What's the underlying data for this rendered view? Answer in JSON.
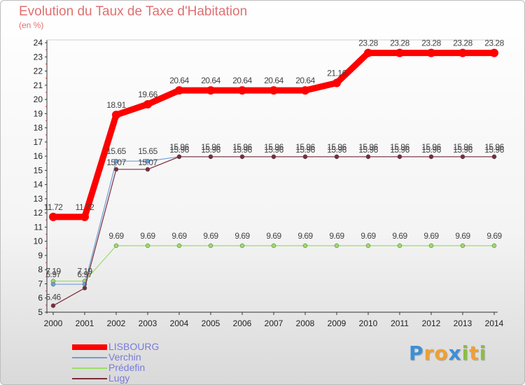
{
  "chart_data": {
    "type": "line",
    "title": "Evolution du Taux de Taxe d'Habitation",
    "subtitle": "(en %)",
    "x": [
      "2000",
      "2001",
      "2002",
      "2003",
      "2004",
      "2005",
      "2006",
      "2007",
      "2008",
      "2009",
      "2010",
      "2011",
      "2012",
      "2013",
      "2014"
    ],
    "ylim": [
      5,
      24
    ],
    "yticks": [
      "5",
      "6",
      "7",
      "8",
      "9",
      "10",
      "11",
      "12",
      "13",
      "14",
      "15",
      "16",
      "17",
      "18",
      "19",
      "20",
      "21",
      "22",
      "23",
      "24"
    ],
    "grid": false,
    "series": [
      {
        "name": "LISBOURG",
        "color": "#ff0000",
        "values": [
          11.72,
          11.72,
          18.91,
          19.66,
          20.64,
          20.64,
          20.64,
          20.64,
          20.64,
          21.16,
          23.28,
          23.28,
          23.28,
          23.28,
          23.28
        ],
        "labels": [
          "11.72",
          "11.72",
          "18.91",
          "19.66",
          "20.64",
          "20.64",
          "20.64",
          "20.64",
          "20.64",
          "21.16",
          "23.28",
          "23.28",
          "23.28",
          "23.28",
          "23.28"
        ]
      },
      {
        "name": "Verchin",
        "color": "#6e9ed6",
        "values": [
          6.97,
          6.97,
          15.65,
          15.65,
          15.96,
          15.96,
          15.96,
          15.96,
          15.96,
          15.96,
          15.96,
          15.96,
          15.96,
          15.96,
          15.96
        ],
        "labels": [
          "6.97",
          "6.97",
          "15.65",
          "15.65",
          "15.96",
          "15.96",
          "15.96",
          "15.96",
          "15.96",
          "15.96",
          "15.96",
          "15.96",
          "15.96",
          "15.96",
          "15.96"
        ]
      },
      {
        "name": "Prédefin",
        "color": "#99dd66",
        "values": [
          7.19,
          7.19,
          9.69,
          9.69,
          9.69,
          9.69,
          9.69,
          9.69,
          9.69,
          9.69,
          9.69,
          9.69,
          9.69,
          9.69,
          9.69
        ],
        "labels": [
          "7.19",
          "7.19",
          "9.69",
          "9.69",
          "9.69",
          "9.69",
          "9.69",
          "9.69",
          "9.69",
          "9.69",
          "9.69",
          "9.69",
          "9.69",
          "9.69",
          "9.69"
        ]
      },
      {
        "name": "Lugy",
        "color": "#7b2c3a",
        "values": [
          5.46,
          6.7,
          15.07,
          15.07,
          15.96,
          15.96,
          15.96,
          15.96,
          15.96,
          15.96,
          15.96,
          15.96,
          15.96,
          15.96,
          15.96
        ],
        "labels": [
          "5.46",
          "",
          "15.07",
          "15.07",
          "15.96",
          "15.96",
          "15.96",
          "15.96",
          "15.96",
          "15.96",
          "15.96",
          "15.96",
          "15.96",
          "15.96",
          "15.96"
        ]
      }
    ]
  },
  "logo": {
    "letters": [
      "P",
      "r",
      "o",
      "x",
      "i",
      "t",
      "i"
    ],
    "colors": [
      "#3d8fd9",
      "#f0a030",
      "#f0a030",
      "#3d8fd9",
      "#88c040",
      "#f0a030",
      "#88c040"
    ]
  }
}
